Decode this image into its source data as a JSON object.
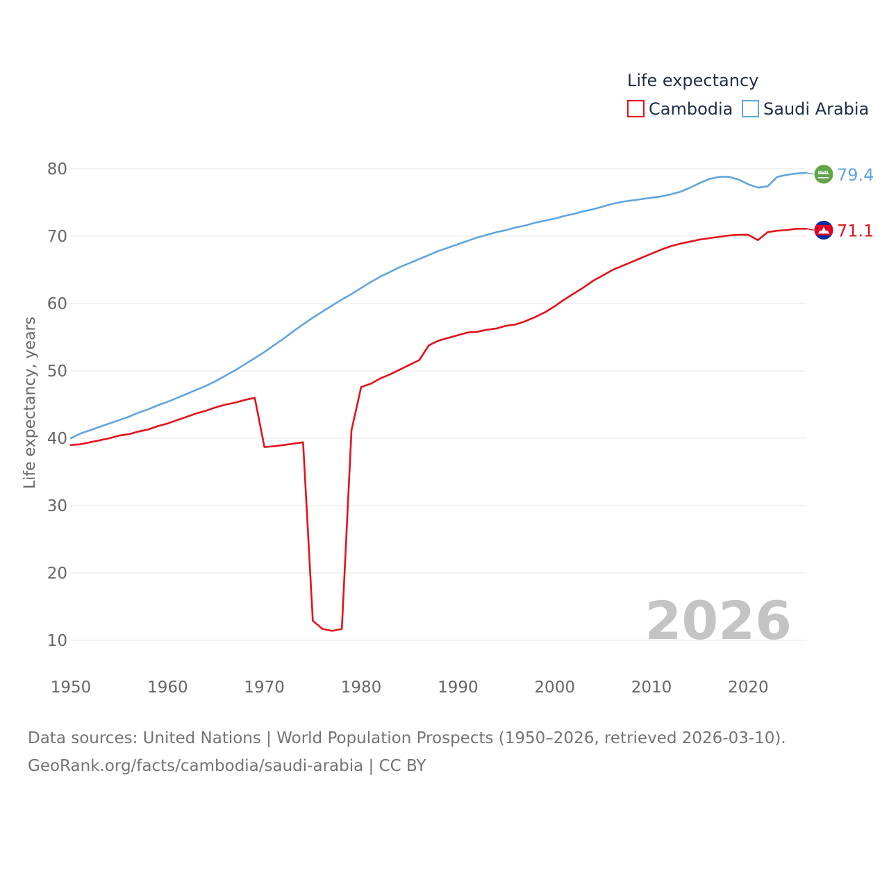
{
  "chart_data": {
    "type": "line",
    "title": "Life expectancy",
    "ylabel": "Life expectancy, years",
    "xlabel": "",
    "ylim": [
      10,
      80
    ],
    "xlim": [
      1950,
      2026
    ],
    "yticks": [
      10,
      20,
      30,
      40,
      50,
      60,
      70,
      80
    ],
    "xticks": [
      1950,
      1960,
      1970,
      1980,
      1990,
      2000,
      2010,
      2020
    ],
    "grid": true,
    "legend_position": "top-right",
    "year_label": "2026",
    "series": [
      {
        "name": "Cambodia",
        "color": "#e3121b",
        "flag_icon": "cambodia-flag-icon",
        "end_label": "71.1",
        "x": [
          1950,
          1951,
          1952,
          1953,
          1954,
          1955,
          1956,
          1957,
          1958,
          1959,
          1960,
          1961,
          1962,
          1963,
          1964,
          1965,
          1966,
          1967,
          1968,
          1969,
          1970,
          1971,
          1972,
          1973,
          1974,
          1975,
          1976,
          1977,
          1978,
          1979,
          1980,
          1981,
          1982,
          1983,
          1984,
          1985,
          1986,
          1987,
          1988,
          1989,
          1990,
          1991,
          1992,
          1993,
          1994,
          1995,
          1996,
          1997,
          1998,
          1999,
          2000,
          2001,
          2002,
          2003,
          2004,
          2005,
          2006,
          2007,
          2008,
          2009,
          2010,
          2011,
          2012,
          2013,
          2014,
          2015,
          2016,
          2017,
          2018,
          2019,
          2020,
          2021,
          2022,
          2023,
          2024,
          2025,
          2026
        ],
        "values": [
          39.0,
          39.1,
          39.4,
          39.7,
          40.0,
          40.4,
          40.6,
          41.0,
          41.3,
          41.8,
          42.2,
          42.7,
          43.2,
          43.7,
          44.1,
          44.6,
          45.0,
          45.3,
          45.7,
          46.0,
          38.7,
          38.8,
          39.0,
          39.2,
          39.4,
          12.9,
          11.7,
          11.4,
          11.7,
          41.2,
          47.6,
          48.1,
          48.9,
          49.5,
          50.2,
          50.9,
          51.6,
          53.8,
          54.5,
          54.9,
          55.3,
          55.7,
          55.8,
          56.1,
          56.3,
          56.7,
          56.9,
          57.4,
          58.0,
          58.7,
          59.6,
          60.6,
          61.5,
          62.4,
          63.4,
          64.2,
          65.0,
          65.6,
          66.2,
          66.8,
          67.4,
          68.0,
          68.5,
          68.9,
          69.2,
          69.5,
          69.7,
          69.9,
          70.1,
          70.2,
          70.2,
          69.4,
          70.6,
          70.8,
          70.9,
          71.1,
          71.1
        ]
      },
      {
        "name": "Saudi Arabia",
        "color": "#61a4e0",
        "flag_icon": "saudi-arabia-flag-icon",
        "end_label": "79.4",
        "x": [
          1950,
          1951,
          1952,
          1953,
          1954,
          1955,
          1956,
          1957,
          1958,
          1959,
          1960,
          1961,
          1962,
          1963,
          1964,
          1965,
          1966,
          1967,
          1968,
          1969,
          1970,
          1971,
          1972,
          1973,
          1974,
          1975,
          1976,
          1977,
          1978,
          1979,
          1980,
          1981,
          1982,
          1983,
          1984,
          1985,
          1986,
          1987,
          1988,
          1989,
          1990,
          1991,
          1992,
          1993,
          1994,
          1995,
          1996,
          1997,
          1998,
          1999,
          2000,
          2001,
          2002,
          2003,
          2004,
          2005,
          2006,
          2007,
          2008,
          2009,
          2010,
          2011,
          2012,
          2013,
          2014,
          2015,
          2016,
          2017,
          2018,
          2019,
          2020,
          2021,
          2022,
          2023,
          2024,
          2025,
          2026
        ],
        "values": [
          40.0,
          40.7,
          41.2,
          41.7,
          42.2,
          42.7,
          43.2,
          43.8,
          44.3,
          44.9,
          45.4,
          46.0,
          46.6,
          47.2,
          47.8,
          48.5,
          49.3,
          50.1,
          51.0,
          51.9,
          52.8,
          53.8,
          54.8,
          55.9,
          56.9,
          57.9,
          58.8,
          59.7,
          60.6,
          61.4,
          62.3,
          63.2,
          64.0,
          64.7,
          65.4,
          66.0,
          66.6,
          67.2,
          67.8,
          68.3,
          68.8,
          69.3,
          69.8,
          70.2,
          70.6,
          70.9,
          71.3,
          71.6,
          72.0,
          72.3,
          72.6,
          73.0,
          73.3,
          73.7,
          74.0,
          74.4,
          74.8,
          75.1,
          75.3,
          75.5,
          75.7,
          75.9,
          76.2,
          76.6,
          77.2,
          77.9,
          78.5,
          78.8,
          78.8,
          78.4,
          77.7,
          77.2,
          77.4,
          78.8,
          79.1,
          79.3,
          79.4
        ]
      }
    ],
    "source_line_1": "Data sources: United Nations | World Population Prospects (1950–2026, retrieved 2026-03-10).",
    "source_line_2": "GeoRank.org/facts/cambodia/saudi-arabia | CC BY"
  }
}
